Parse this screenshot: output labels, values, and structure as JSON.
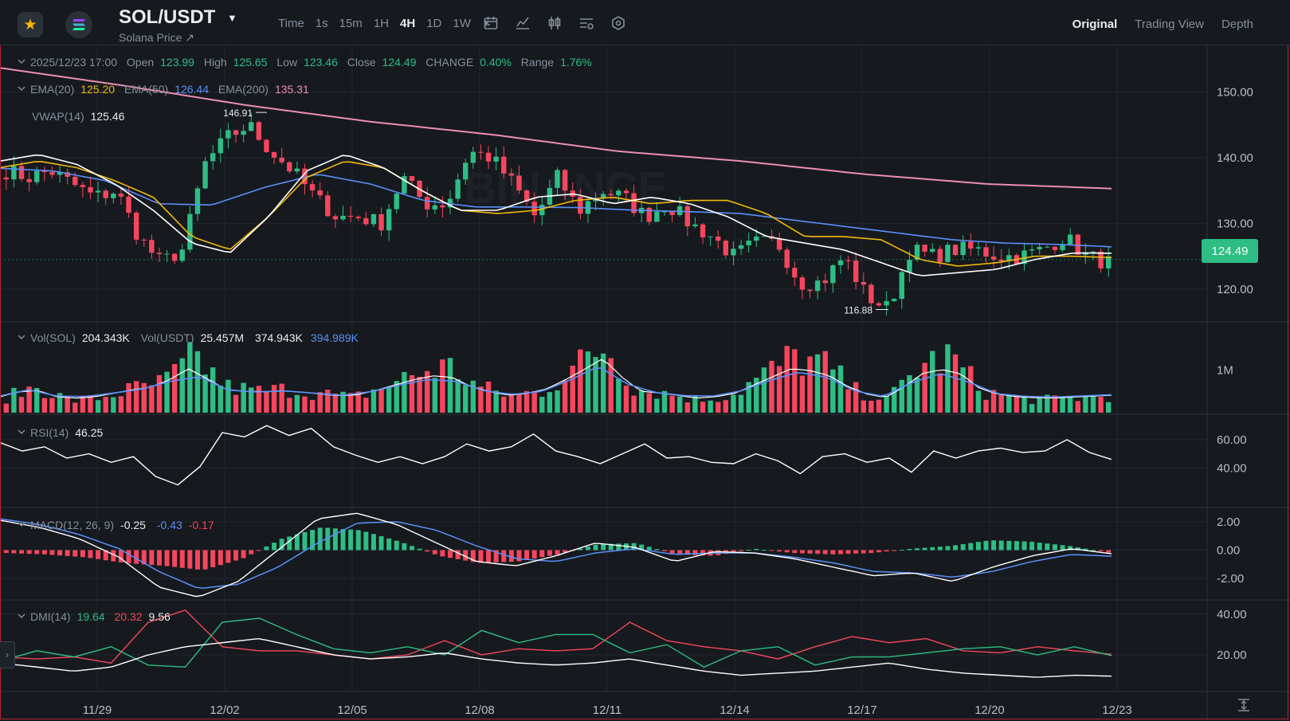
{
  "header": {
    "favorite_icon": "star-icon",
    "coin_icon": "solana-logo",
    "pair": "SOL/USDT",
    "subtitle": "Solana Price ↗",
    "intervals": [
      "Time",
      "1s",
      "15m",
      "1H",
      "4H",
      "1D",
      "1W"
    ],
    "active_interval": "4H",
    "tool_icons": [
      "calendar-icon",
      "indicator-icon",
      "candle-type-icon",
      "settings-list-icon",
      "hexagon-settings-icon"
    ],
    "views": [
      "Original",
      "Trading View",
      "Depth"
    ],
    "active_view": "Original"
  },
  "ohlc": {
    "date": "2025/12/23 17:00",
    "open_label": "Open",
    "open": "123.99",
    "high_label": "High",
    "high": "125.65",
    "low_label": "Low",
    "low": "123.46",
    "close_label": "Close",
    "close": "124.49",
    "change_label": "CHANGE",
    "change": "0.40%",
    "range_label": "Range",
    "range": "1.76%"
  },
  "ema": {
    "ema20_label": "EMA(20)",
    "ema20": "125.20",
    "ema50_label": "EMA(50)",
    "ema50": "126.44",
    "ema200_label": "EMA(200)",
    "ema200": "135.31"
  },
  "vwap": {
    "label": "VWAP(14)",
    "value": "125.46"
  },
  "volume": {
    "sol_label": "Vol(SOL)",
    "sol": "204.343K",
    "usdt_label": "Vol(USDT)",
    "usdt": "25.457M",
    "ma1": "374.943K",
    "ma2": "394.989K"
  },
  "rsi": {
    "label": "RSI(14)",
    "value": "46.25"
  },
  "macd": {
    "label": "MACD(12, 26, 9)",
    "dif": "-0.25",
    "dea": "-0.43",
    "hist": "-0.17"
  },
  "dmi": {
    "label": "DMI(14)",
    "pdi": "19.64",
    "mdi": "20.32",
    "adx": "9.56"
  },
  "last_price": "124.49",
  "colors": {
    "up": "#2ebd85",
    "down": "#f6465d",
    "ema20": "#f0b90b",
    "ema50": "#5b8ff9",
    "ema200": "#e98fb2",
    "vwap": "#ffffff",
    "background": "#161a1e",
    "grid": "#22272e"
  },
  "chart_data": {
    "type": "candlestick",
    "x_ticks": [
      "11/29",
      "12/02",
      "12/05",
      "12/08",
      "12/11",
      "12/14",
      "12/17",
      "12/20",
      "12/23"
    ],
    "price_axis": {
      "ticks": [
        "150.00",
        "140.00",
        "130.00",
        "120.00"
      ],
      "range": [
        115,
        157
      ]
    },
    "annotations": [
      {
        "label": "146.91",
        "value": 146.91,
        "type": "high"
      },
      {
        "label": "116.88",
        "value": 116.88,
        "type": "low"
      }
    ],
    "volume_axis": {
      "ticks": [
        "1M"
      ]
    },
    "rsi_axis": {
      "ticks": [
        "60.00",
        "40.00"
      ],
      "range": [
        12,
        78
      ]
    },
    "macd_axis": {
      "ticks": [
        "2.00",
        "0.00",
        "-2.00"
      ],
      "range": [
        -3.5,
        3
      ]
    },
    "dmi_axis": {
      "ticks": [
        "40.00",
        "20.00"
      ],
      "range": [
        2,
        47
      ]
    },
    "close_anchors": [
      138,
      137,
      138,
      136,
      134,
      135,
      128,
      124,
      126,
      139,
      143,
      145,
      141,
      138,
      134,
      131,
      131,
      130,
      137,
      133,
      133,
      141,
      140,
      136,
      131,
      137,
      132,
      135,
      134,
      131,
      133,
      130,
      128,
      125,
      127,
      127,
      121,
      121,
      125,
      119,
      117,
      126,
      125,
      126,
      126,
      125,
      125,
      126,
      128,
      125,
      124
    ],
    "ema20_anchors": [
      138.5,
      139.5,
      138.5,
      136.5,
      134,
      128,
      126,
      131,
      137,
      139.5,
      138.5,
      135,
      132,
      131.5,
      132,
      133.5,
      134,
      133,
      133.5,
      133.5,
      131.5,
      128,
      128,
      127.5,
      124.5,
      123.5,
      124,
      125,
      125,
      124.8
    ],
    "ema50_anchors": [
      138.4,
      138,
      136.5,
      133,
      132.8,
      135.5,
      137.5,
      136,
      133.5,
      132.5,
      132.5,
      132.4,
      132,
      131.8,
      131.5,
      130.5,
      129.5,
      128.5,
      127.5,
      127,
      126.8,
      126.44
    ],
    "ema200_anchors": [
      153.7,
      151,
      148,
      145.5,
      143.5,
      141,
      139.5,
      137.5,
      136,
      135.31
    ],
    "vwap_anchors": [
      139.5,
      140.5,
      139,
      136,
      132,
      127,
      125.5,
      131,
      138,
      140.5,
      138.5,
      135,
      132,
      132,
      134,
      134.5,
      133,
      134,
      133,
      131,
      128,
      127,
      126,
      124,
      122,
      122.5,
      123,
      124.5,
      125.5,
      125.46
    ],
    "volume_anchors": [
      0.35,
      0.62,
      0.28,
      0.35,
      0.55,
      0.7,
      1.3,
      0.6,
      0.5,
      0.55,
      0.45,
      0.35,
      0.6,
      0.9,
      1.1,
      0.6,
      0.4,
      0.5,
      1.0,
      1.6,
      0.55,
      0.45,
      0.3,
      0.4,
      0.85,
      1.3,
      1.1,
      0.5,
      0.3,
      1.1,
      1.3,
      0.5,
      0.35,
      0.3,
      0.35,
      0.4
    ],
    "rsi_anchors": [
      58,
      52,
      55,
      47,
      50,
      44,
      48,
      34,
      28,
      41,
      65,
      62,
      70,
      63,
      68,
      55,
      49,
      44,
      48,
      43,
      48,
      57,
      52,
      55,
      64,
      52,
      48,
      43,
      50,
      57,
      47,
      48,
      44,
      43,
      50,
      45,
      36,
      48,
      50,
      44,
      47,
      37,
      52,
      47,
      52,
      54,
      51,
      52,
      60,
      51,
      46
    ],
    "macd_dif_anchors": [
      2.1,
      1.6,
      0.8,
      -0.5,
      -2.6,
      -3.3,
      -2.2,
      0,
      2.2,
      2.6,
      1.8,
      0.5,
      -0.8,
      -1.1,
      -0.4,
      0.5,
      0.2,
      -0.8,
      -0.1,
      -0.2,
      -0.6,
      -1.2,
      -1.8,
      -1.6,
      -2.2,
      -1.2,
      -0.4,
      0.1,
      -0.25
    ],
    "macd_dea_anchors": [
      2.2,
      1.8,
      1.1,
      0.1,
      -1.5,
      -2.7,
      -2.4,
      -1.2,
      0.5,
      1.9,
      2.0,
      1.4,
      0.3,
      -0.6,
      -0.8,
      -0.2,
      0.1,
      -0.3,
      -0.2,
      -0.2,
      -0.5,
      -0.9,
      -1.5,
      -1.6,
      -1.9,
      -1.5,
      -0.8,
      -0.3,
      -0.43
    ],
    "macd_hist_anchors": [
      -0.2,
      -0.3,
      -0.5,
      -0.9,
      -1.1,
      -1.4,
      -0.6,
      0.8,
      1.6,
      1.4,
      0.6,
      -0.4,
      -0.9,
      -0.8,
      -0.3,
      0.4,
      0.5,
      -0.3,
      -0.4,
      0.1,
      -0.2,
      -0.3,
      -0.2,
      0.1,
      0.3,
      0.7,
      0.6,
      0.3,
      -0.17
    ],
    "dmi_pdi_anchors": [
      17,
      22,
      19,
      24,
      15,
      14,
      36,
      38,
      30,
      23,
      21,
      24,
      20,
      32,
      26,
      30,
      30,
      21,
      25,
      14,
      22,
      24,
      15,
      19,
      19,
      21,
      23,
      24,
      20,
      24,
      19.64
    ],
    "dmi_mdi_anchors": [
      19,
      18,
      19,
      16,
      36,
      42,
      24,
      22,
      22,
      20,
      18,
      20,
      27,
      20,
      23,
      22,
      23,
      36,
      27,
      24,
      22,
      18,
      24,
      29,
      26,
      28,
      22,
      21,
      24,
      22,
      20.32
    ],
    "dmi_adx_anchors": [
      16,
      14,
      12,
      14,
      20,
      24,
      26,
      28,
      24,
      20,
      18,
      19,
      21,
      18,
      16,
      15,
      16,
      18,
      15,
      12,
      10,
      11,
      12,
      14,
      16,
      13,
      11,
      10,
      9,
      10,
      9.56
    ]
  }
}
